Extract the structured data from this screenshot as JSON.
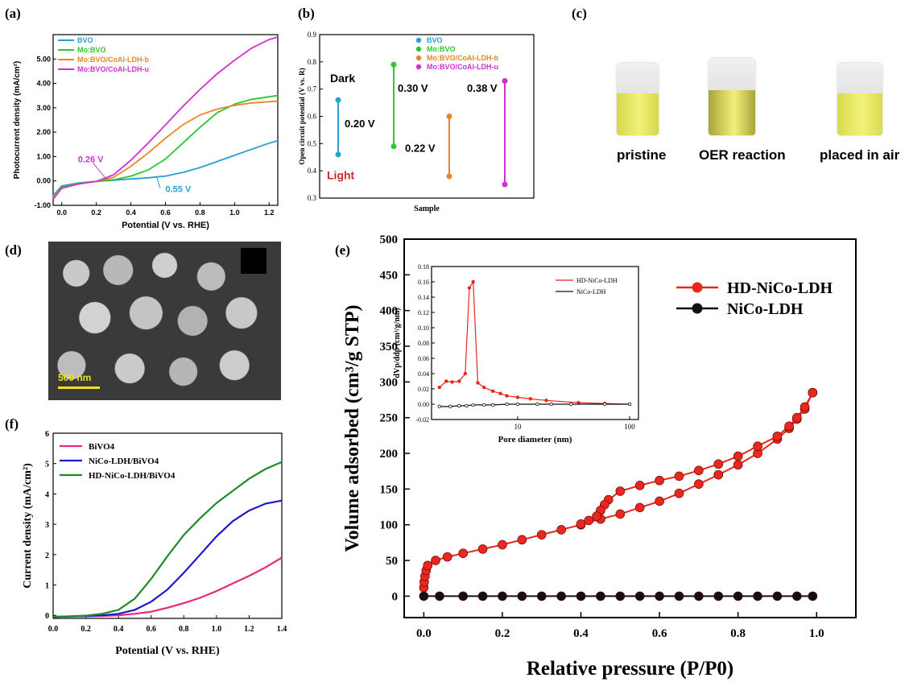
{
  "panels": {
    "a": {
      "letter": "(a)",
      "title": "",
      "xlabel": "Potential (V vs. RHE)",
      "ylabel": "Photocurrent density (mA/cm²)",
      "xlim": [
        -0.05,
        1.25
      ],
      "ylim": [
        -1.0,
        6.0
      ],
      "xticks": [
        "0.0",
        "0.2",
        "0.4",
        "0.6",
        "0.8",
        "1.0",
        "1.2"
      ],
      "xtick_values": [
        0.0,
        0.2,
        0.4,
        0.6,
        0.8,
        1.0,
        1.2
      ],
      "yticks": [
        "-1.00",
        "0.00",
        "1.00",
        "2.00",
        "3.00",
        "4.00",
        "5.00"
      ],
      "ytick_values": [
        -1,
        0,
        1,
        2,
        3,
        4,
        5
      ],
      "annotations": [
        {
          "text": "0.26 V",
          "color": "#d030d0",
          "x": 0.26,
          "y": 0.05
        },
        {
          "text": "0.55 V",
          "color": "#2aa0d0",
          "x": 0.55,
          "y": 0.15
        }
      ]
    },
    "b": {
      "letter": "(b)",
      "xlabel": "Sample",
      "ylabel": "Open circuit potential (V vs. R)",
      "ylim": [
        0.3,
        0.9
      ],
      "yticks": [
        "0.3",
        "0.4",
        "0.5",
        "0.6",
        "0.7",
        "0.8",
        "0.9"
      ],
      "ytick_values": [
        0.3,
        0.4,
        0.5,
        0.6,
        0.7,
        0.8,
        0.9
      ],
      "dark_label": "Dark",
      "light_label": "Light"
    },
    "c": {
      "letter": "(c)",
      "labels": [
        "pristine",
        "OER reaction",
        "placed in air"
      ],
      "vial_colors": [
        "#d6d84a",
        "#a8a43a",
        "#d8da50"
      ]
    },
    "d": {
      "letter": "(d)",
      "scale_bar": "500 nm"
    },
    "e": {
      "letter": "(e)",
      "xlabel": "Relative  pressure (P/P0)",
      "ylabel": "Volume adsorbed (cm³/g STP)",
      "xticks": [
        "0.0",
        "0.2",
        "0.4",
        "0.6",
        "0.8",
        "1.0"
      ],
      "xtick_values": [
        0,
        0.2,
        0.4,
        0.6,
        0.8,
        1.0
      ],
      "yticks": [
        "0",
        "50",
        "100",
        "150",
        "200",
        "250",
        "300",
        "350",
        "400",
        "450",
        "500"
      ],
      "ytick_values": [
        0,
        50,
        100,
        150,
        200,
        250,
        300,
        350,
        400,
        450,
        500
      ],
      "inset": {
        "xlabel": "Pore diameter (nm)",
        "ylabel": "dVp/ddp (cm³/g/nm)",
        "xticks": [
          "10",
          "100"
        ],
        "xtick_values": [
          10,
          100
        ],
        "yticks": [
          "-0.02",
          "0.00",
          "0.02",
          "0.04",
          "0.06",
          "0.08",
          "0.10",
          "0.12",
          "0.14",
          "0.16",
          "0.18"
        ],
        "ytick_values": [
          -0.02,
          0,
          0.02,
          0.04,
          0.06,
          0.08,
          0.1,
          0.12,
          0.14,
          0.16,
          0.18
        ]
      }
    },
    "f": {
      "letter": "(f)",
      "xlabel": "Potential (V vs. RHE)",
      "ylabel": "Current density (mA/cm²)",
      "xticks": [
        "0.0",
        "0.2",
        "0.4",
        "0.6",
        "0.8",
        "1.0",
        "1.2",
        "1.4"
      ],
      "xtick_values": [
        0,
        0.2,
        0.4,
        0.6,
        0.8,
        1.0,
        1.2,
        1.4
      ],
      "yticks": [
        "0",
        "1",
        "2",
        "3",
        "4",
        "5",
        "6"
      ],
      "ytick_values": [
        0,
        1,
        2,
        3,
        4,
        5,
        6
      ]
    }
  },
  "chart_data": [
    {
      "panel": "a",
      "type": "line",
      "xlim": [
        -0.05,
        1.25
      ],
      "ylim": [
        -1.0,
        6.0
      ],
      "legend_position": "top-left",
      "series": [
        {
          "name": "BVO",
          "color": "#2aa0d0",
          "x": [
            -0.05,
            0.0,
            0.1,
            0.2,
            0.3,
            0.4,
            0.5,
            0.6,
            0.7,
            0.8,
            0.9,
            1.0,
            1.1,
            1.2,
            1.25
          ],
          "y": [
            -0.6,
            -0.2,
            -0.08,
            -0.02,
            0.03,
            0.08,
            0.13,
            0.2,
            0.35,
            0.55,
            0.8,
            1.05,
            1.3,
            1.55,
            1.65
          ]
        },
        {
          "name": "Mo:BVO",
          "color": "#2ec82e",
          "x": [
            -0.05,
            0.0,
            0.1,
            0.2,
            0.3,
            0.4,
            0.5,
            0.6,
            0.7,
            0.8,
            0.9,
            1.0,
            1.1,
            1.2,
            1.25
          ],
          "y": [
            -0.65,
            -0.25,
            -0.1,
            -0.02,
            0.05,
            0.2,
            0.45,
            0.9,
            1.55,
            2.2,
            2.8,
            3.15,
            3.35,
            3.45,
            3.5
          ]
        },
        {
          "name": "Mo:BVO/CoAl-LDH-b",
          "color": "#e8862a",
          "x": [
            -0.05,
            0.0,
            0.1,
            0.2,
            0.3,
            0.4,
            0.5,
            0.6,
            0.7,
            0.8,
            0.9,
            1.0,
            1.1,
            1.2,
            1.25
          ],
          "y": [
            -0.7,
            -0.3,
            -0.12,
            -0.02,
            0.15,
            0.6,
            1.15,
            1.75,
            2.3,
            2.7,
            2.95,
            3.1,
            3.2,
            3.25,
            3.27
          ]
        },
        {
          "name": "Mo:BVO/CoAl-LDH-u",
          "color": "#d030d0",
          "x": [
            -0.05,
            0.0,
            0.1,
            0.2,
            0.3,
            0.4,
            0.5,
            0.6,
            0.7,
            0.8,
            0.9,
            1.0,
            1.1,
            1.2,
            1.25
          ],
          "y": [
            -0.75,
            -0.3,
            -0.12,
            -0.02,
            0.25,
            0.85,
            1.55,
            2.3,
            3.05,
            3.75,
            4.4,
            4.95,
            5.45,
            5.8,
            5.9
          ]
        }
      ]
    },
    {
      "panel": "b",
      "type": "scatter",
      "ylim": [
        0.3,
        0.9
      ],
      "legend_position": "top-right",
      "series": [
        {
          "name": "BVO",
          "color": "#2aa0d0",
          "dark": 0.66,
          "light": 0.46,
          "delta_label": "0.20 V"
        },
        {
          "name": "Mo:BVO",
          "color": "#2ec82e",
          "dark": 0.79,
          "light": 0.49,
          "delta_label": "0.30 V"
        },
        {
          "name": "Mo:BVO/CoAl-LDH-b",
          "color": "#e8862a",
          "dark": 0.6,
          "light": 0.38,
          "delta_label": "0.22 V"
        },
        {
          "name": "Mo:BVO/CoAl-LDH-u",
          "color": "#d030d0",
          "dark": 0.73,
          "light": 0.35,
          "delta_label": "0.38 V"
        }
      ]
    },
    {
      "panel": "e",
      "type": "line",
      "xlim": [
        -0.05,
        1.1
      ],
      "ylim": [
        -30,
        500
      ],
      "legend_position": "top-right",
      "series": [
        {
          "name": "HD-NiCo-LDH",
          "color": "#e8281e",
          "branch": "adsorption",
          "x": [
            0.0,
            0.001,
            0.003,
            0.006,
            0.01,
            0.03,
            0.06,
            0.1,
            0.15,
            0.2,
            0.25,
            0.3,
            0.35,
            0.4,
            0.45,
            0.5,
            0.55,
            0.6,
            0.65,
            0.7,
            0.75,
            0.8,
            0.85,
            0.9,
            0.93,
            0.95,
            0.97,
            0.99
          ],
          "y": [
            12,
            20,
            28,
            36,
            43,
            50,
            55,
            60,
            66,
            72,
            79,
            86,
            93,
            100,
            108,
            115,
            124,
            133,
            144,
            157,
            170,
            184,
            200,
            220,
            235,
            248,
            262,
            285
          ]
        },
        {
          "name": "HD-NiCo-LDH",
          "color": "#e8281e",
          "branch": "desorption",
          "x": [
            0.99,
            0.97,
            0.95,
            0.93,
            0.9,
            0.85,
            0.8,
            0.75,
            0.7,
            0.65,
            0.6,
            0.55,
            0.5,
            0.47,
            0.46,
            0.45,
            0.44,
            0.42,
            0.4
          ],
          "y": [
            285,
            265,
            250,
            238,
            224,
            210,
            196,
            185,
            176,
            168,
            162,
            155,
            147,
            135,
            128,
            120,
            112,
            106,
            101
          ]
        },
        {
          "name": "NiCo-LDH",
          "color": "#111111",
          "x": [
            0.0,
            0.04,
            0.1,
            0.15,
            0.2,
            0.25,
            0.3,
            0.35,
            0.4,
            0.45,
            0.5,
            0.55,
            0.6,
            0.65,
            0.7,
            0.75,
            0.8,
            0.85,
            0.9,
            0.95,
            0.99
          ],
          "y": [
            0,
            0,
            0,
            0,
            0,
            0,
            0,
            0,
            0,
            0,
            0,
            0,
            0,
            0,
            0,
            0,
            0,
            0,
            0,
            0,
            0
          ]
        }
      ],
      "inset": {
        "type": "line",
        "xscale": "log",
        "xlim": [
          1.7,
          120
        ],
        "ylim": [
          -0.02,
          0.18
        ],
        "legend_position": "top-right",
        "series": [
          {
            "name": "HD-NiCo-LDH",
            "color": "#e8281e",
            "x": [
              2.0,
              2.3,
              2.6,
              3.0,
              3.4,
              3.7,
              4.0,
              4.4,
              5.0,
              6.0,
              7.0,
              8.0,
              10,
              13,
              18,
              35,
              60,
              100
            ],
            "y": [
              0.022,
              0.03,
              0.029,
              0.03,
              0.04,
              0.152,
              0.16,
              0.028,
              0.022,
              0.017,
              0.014,
              0.011,
              0.009,
              0.007,
              0.005,
              0.002,
              0.001,
              0.0
            ]
          },
          {
            "name": "NiCo-LDH",
            "color": "#111111",
            "x": [
              2.0,
              2.5,
              3.0,
              3.5,
              4.0,
              5.0,
              6.0,
              8.0,
              10,
              15,
              20,
              30,
              60,
              100
            ],
            "y": [
              -0.003,
              -0.003,
              -0.002,
              -0.002,
              -0.001,
              -0.001,
              -0.001,
              0.0,
              0.0,
              0.0,
              0.0,
              0.0,
              0.0,
              0.0
            ]
          }
        ]
      }
    },
    {
      "panel": "f",
      "type": "line",
      "xlim": [
        0.0,
        1.4
      ],
      "ylim": [
        -0.1,
        6.0
      ],
      "legend_position": "top-left",
      "series": [
        {
          "name": "BiVO4",
          "color": "#e8287a",
          "x": [
            0.0,
            0.1,
            0.2,
            0.3,
            0.4,
            0.5,
            0.6,
            0.7,
            0.8,
            0.9,
            1.0,
            1.1,
            1.2,
            1.3,
            1.4
          ],
          "y": [
            -0.05,
            -0.04,
            -0.03,
            -0.02,
            0.0,
            0.05,
            0.12,
            0.25,
            0.4,
            0.58,
            0.8,
            1.05,
            1.3,
            1.58,
            1.9
          ]
        },
        {
          "name": "NiCo-LDH/BiVO4",
          "color": "#1a1ad0",
          "x": [
            0.0,
            0.1,
            0.2,
            0.3,
            0.4,
            0.5,
            0.6,
            0.7,
            0.8,
            0.9,
            1.0,
            1.1,
            1.2,
            1.3,
            1.4
          ],
          "y": [
            -0.05,
            -0.04,
            -0.02,
            0.0,
            0.05,
            0.18,
            0.45,
            0.85,
            1.4,
            2.0,
            2.6,
            3.1,
            3.45,
            3.68,
            3.78
          ]
        },
        {
          "name": "HD-NiCo-LDH/BiVO4",
          "color": "#1e8a2a",
          "x": [
            0.0,
            0.1,
            0.2,
            0.3,
            0.4,
            0.5,
            0.6,
            0.7,
            0.8,
            0.9,
            1.0,
            1.1,
            1.2,
            1.3,
            1.4
          ],
          "y": [
            -0.05,
            -0.03,
            -0.01,
            0.05,
            0.18,
            0.55,
            1.2,
            1.95,
            2.65,
            3.2,
            3.7,
            4.1,
            4.5,
            4.82,
            5.05
          ]
        }
      ]
    }
  ]
}
